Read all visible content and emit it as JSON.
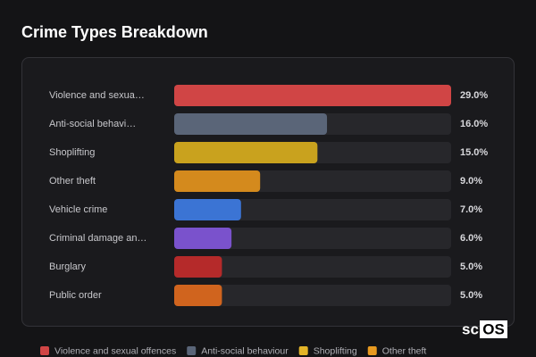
{
  "chart_data": {
    "type": "hbar",
    "title": "Crime Types Breakdown",
    "categories": [
      "Violence and sexua…",
      "Anti-social behavi…",
      "Shoplifting",
      "Other theft",
      "Vehicle crime",
      "Criminal damage an…",
      "Burglary",
      "Public order"
    ],
    "values": [
      29,
      16,
      15,
      9,
      7,
      6,
      5,
      5
    ],
    "value_labels": [
      "29.0%",
      "16.0%",
      "15.0%",
      "9.0%",
      "7.0%",
      "6.0%",
      "5.0%",
      "5.0%"
    ],
    "colors": [
      "#d04545",
      "#5a6578",
      "#c9a21e",
      "#d48a1d",
      "#3b74d4",
      "#7a52cc",
      "#b52a2a",
      "#d0641e"
    ],
    "xlim": [
      0,
      29
    ],
    "legend": [
      {
        "name": "Violence and sexual offences",
        "color": "#d04545"
      },
      {
        "name": "Anti-social behaviour",
        "color": "#5a6578"
      },
      {
        "name": "Shoplifting",
        "color": "#e3b428"
      },
      {
        "name": "Other theft",
        "color": "#e89a20"
      }
    ]
  },
  "logo": {
    "prefix": "sc",
    "box": "OS"
  }
}
